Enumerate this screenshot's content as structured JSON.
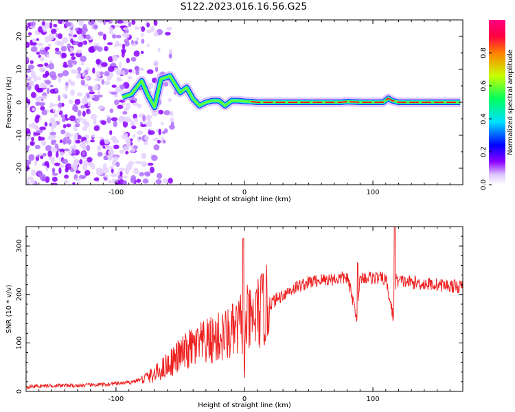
{
  "figure_title": "S122.2023.016.16.56.G25",
  "chart_data": [
    {
      "type": "heatmap",
      "title": "",
      "xlabel": "Height of straight line (km)",
      "ylabel": "Frequency (Hz)",
      "xlim": [
        -170,
        170
      ],
      "ylim": [
        -25,
        25
      ],
      "x_ticks": [
        -100,
        0,
        100
      ],
      "y_ticks": [
        -20,
        -10,
        0,
        10,
        20
      ],
      "grid": false,
      "colorbar": {
        "label": "Normalized spectral amplitude",
        "range": [
          0.0,
          1.0
        ],
        "ticks": [
          0.0,
          0.2,
          0.4,
          0.6,
          0.8
        ],
        "colors": [
          "#ffffff",
          "#e0c8ff",
          "#8a00ff",
          "#0000ff",
          "#00e0ff",
          "#00ff60",
          "#c8ff00",
          "#ff8000",
          "#ff0040",
          "#ff0080"
        ]
      },
      "ridge": [
        [
          -95,
          1.5
        ],
        [
          -88,
          2.5
        ],
        [
          -80,
          6.5
        ],
        [
          -75,
          2
        ],
        [
          -70,
          -1.5
        ],
        [
          -65,
          7
        ],
        [
          -58,
          8
        ],
        [
          -50,
          3
        ],
        [
          -45,
          4.5
        ],
        [
          -40,
          1
        ],
        [
          -35,
          -1
        ],
        [
          -30,
          0
        ],
        [
          -25,
          0.5
        ],
        [
          -20,
          0.5
        ],
        [
          -15,
          -1
        ],
        [
          -10,
          0.5
        ],
        [
          -5,
          0.5
        ],
        [
          0,
          0.3
        ],
        [
          5,
          0.2
        ],
        [
          10,
          0
        ],
        [
          20,
          0
        ],
        [
          30,
          0
        ],
        [
          40,
          0
        ],
        [
          60,
          0
        ],
        [
          75,
          0
        ],
        [
          80,
          0.2
        ],
        [
          90,
          0
        ],
        [
          100,
          0
        ],
        [
          108,
          0
        ],
        [
          112,
          1.2
        ],
        [
          115,
          0.5
        ],
        [
          120,
          0
        ],
        [
          130,
          0
        ],
        [
          140,
          0
        ],
        [
          150,
          0
        ],
        [
          160,
          0
        ],
        [
          168,
          0
        ]
      ]
    },
    {
      "type": "line",
      "title": "",
      "xlabel": "Height of straight line (km)",
      "ylabel": "SNR (10 * v/v)",
      "xlim": [
        -170,
        170
      ],
      "ylim": [
        0,
        340
      ],
      "x_ticks": [
        -100,
        0,
        100
      ],
      "y_ticks": [
        0,
        100,
        200,
        300
      ],
      "grid": false,
      "series_color": "#ee2222",
      "x": [
        -170,
        -150,
        -130,
        -110,
        -90,
        -80,
        -70,
        -60,
        -50,
        -40,
        -30,
        -20,
        -10,
        -5,
        -1,
        0,
        1,
        5,
        10,
        20,
        30,
        40,
        50,
        60,
        70,
        80,
        88,
        90,
        100,
        110,
        116,
        118,
        120,
        130,
        140,
        150,
        160,
        170
      ],
      "y": [
        10,
        12,
        12,
        14,
        18,
        25,
        35,
        55,
        75,
        90,
        100,
        110,
        120,
        130,
        150,
        10,
        150,
        140,
        160,
        180,
        200,
        215,
        225,
        230,
        232,
        235,
        150,
        235,
        235,
        232,
        150,
        230,
        228,
        225,
        222,
        220,
        218,
        215
      ],
      "spikes": [
        {
          "x": -1,
          "y": 315
        },
        {
          "x": 88,
          "y": 265
        },
        {
          "x": 117,
          "y": 340
        }
      ]
    }
  ]
}
